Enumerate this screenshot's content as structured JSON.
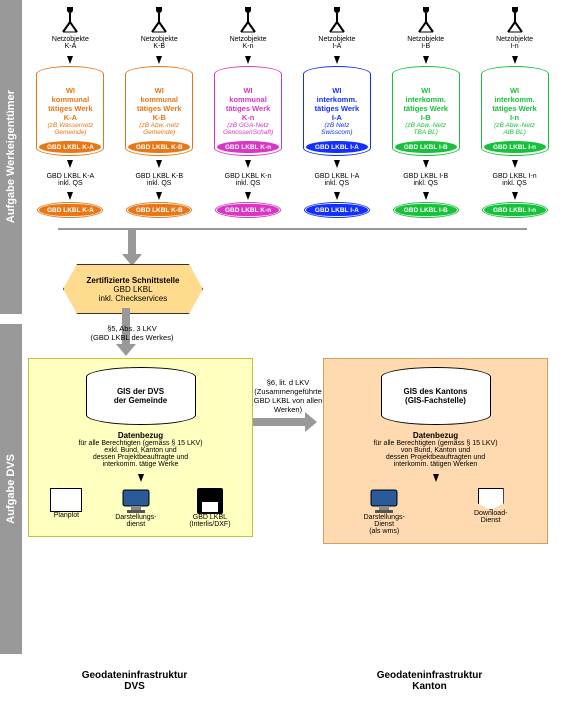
{
  "sidebars": {
    "top": "Aufgabe Werkeigentümer",
    "bottom": "Aufgabe DVS"
  },
  "columns": [
    {
      "netz": "Netzobjekte\nK-A",
      "color": "#e87817",
      "title": "WI\nkommunal\ntätiges Werk\nK-A",
      "sub": "(zB Wassernetz\nGemeinde)",
      "band": "GBD LKBL K-A",
      "qs": "GBD LKBL K-A\ninkl. QS",
      "disk": "GBD LKBL K-A"
    },
    {
      "netz": "Netzobjekte\nK-B",
      "color": "#e87817",
      "title": "WI\nkommunal\ntätiges Werk\nK-B",
      "sub": "(zB Abw.-netz\nGemeinde)",
      "band": "GBD LKBL K-B",
      "qs": "GBD LKBL K-B\ninkl. QS",
      "disk": "GBD LKBL K-B"
    },
    {
      "netz": "Netzobjekte\nK-n",
      "color": "#d837c3",
      "title": "WI\nkommunal\ntätiges Werk\nK-n",
      "sub": "(zB GGA-Netz\nGenossenSchaft)",
      "band": "GBD LKBL K-n",
      "qs": "GBD LKBL K-n\ninkl. QS",
      "disk": "GBD LKBL K-n"
    },
    {
      "netz": "Netzobjekte\nI-A",
      "color": "#1430ff",
      "title": "WI\ninterkomm.\ntätiges Werk\nI-A",
      "sub": "(zB Netz\nSwisscom)",
      "band": "GBD LKBL I-A",
      "qs": "GBD LKBL I-A\ninkl. QS",
      "disk": "GBD LKBL I-A"
    },
    {
      "netz": "Netzobjekte\nI-B",
      "color": "#17c23a",
      "title": "WI\ninterkomm.\ntätiges Werk\nI-B",
      "sub": "(zB Abw.-Netz\nTBA BL)",
      "band": "GBD LKBL I-B",
      "qs": "GBD LKBL I-B\ninkl. QS",
      "disk": "GBD LKBL I-B"
    },
    {
      "netz": "Netzobjekte\nI-n",
      "color": "#17c23a",
      "title": "WI\ninterkomm.\ntätiges Werk\nI-n",
      "sub": "(zB Abw.-Netz\nAIB BL)",
      "band": "GBD LKBL I-n",
      "qs": "GBD LKBL I-n\ninkl. QS",
      "disk": "GBD LKBL I-n"
    }
  ],
  "hexagon": {
    "line1": "Zertifizierte Schnittstelle",
    "line2": "GBD LKBL",
    "line3": "inkl. Checkservices"
  },
  "transfer_left": "§5, Abs. 3 LKV\n(GBD LKBL des Werkes)",
  "transfer_mid": "§6, lit. d LKV\n(Zusammengeführte\nGBD LKBL von allen Werken)",
  "gis_left": {
    "l1": "GIS der DVS",
    "l2": "der Gemeinde"
  },
  "gis_right": {
    "l1": "GIS des Kantons",
    "l2": "(GIS-Fachstelle)"
  },
  "daten_left": {
    "h": "Datenbezug",
    "t": "für alle Berechtigten (gemäss § 15 LKV)\nexkl. Bund, Kanton und\ndessen Projektbeauftragte und\ninterkomm. tätige Werke"
  },
  "daten_right": {
    "h": "Datenbezug",
    "t": "für alle Berechtigten (gemäss § 15 LKV)\nvon Bund, Kanton und\ndessen Projektbeauftragten und\ninterkomm. tätigen Werken"
  },
  "outputs_left": {
    "planplot": "Planplot",
    "darstellung": "Darstellungs-\ndienst",
    "gbd": "GBD LKBL\n(Interlis/DXF)"
  },
  "outputs_right": {
    "darstellung": "Darstellungs-\nDienst\n(als wms)",
    "download": "Download-\nDienst"
  },
  "footer": {
    "left": "Geodateninfrastruktur\nDVS",
    "right": "Geodateninfrastruktur\nKanton"
  },
  "colors": {
    "sidebar": "#999999",
    "zone_yellow_bg": "#ffffc0",
    "zone_orange_bg": "#ffdab0",
    "hex_bg": "#ffdb8e"
  }
}
